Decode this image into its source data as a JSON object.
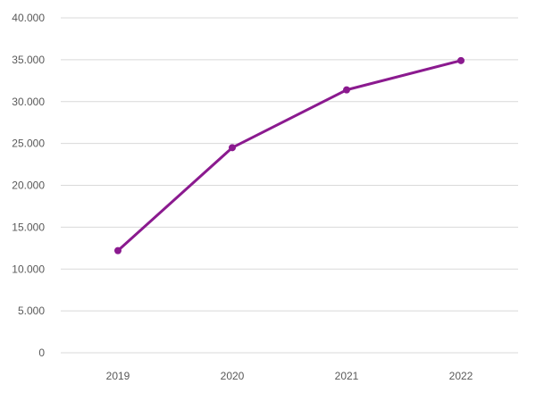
{
  "colors": {
    "series": "#8b1a8f",
    "grid": "#d9d9d9",
    "text": "#595959"
  },
  "chart_data": {
    "type": "line",
    "categories": [
      "2019",
      "2020",
      "2021",
      "2022"
    ],
    "series": [
      {
        "values": [
          12200,
          24500,
          31400,
          34900
        ]
      }
    ],
    "ylim": [
      0,
      40000
    ],
    "yticks": [
      0,
      5000,
      10000,
      15000,
      20000,
      25000,
      30000,
      35000,
      40000
    ],
    "ytick_labels": [
      "0",
      "5.000",
      "10.000",
      "15.000",
      "20.000",
      "25.000",
      "30.000",
      "35.000",
      "40.000"
    ],
    "grid": true,
    "markers": true,
    "legend": "none"
  }
}
